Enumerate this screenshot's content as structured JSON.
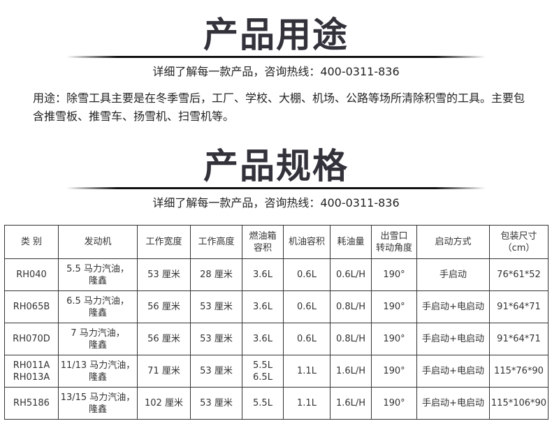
{
  "section1": {
    "title": "产品用途",
    "subtitle": "详细了解每一款产品，咨询热线：400-0311-836"
  },
  "usage": {
    "text": "用途：除雪工具主要是在冬季雪后，工厂、学校、大棚、机场、公路等场所清除积雪的工具。主要包含推雪板、推雪车、扬雪机、扫雪机等。"
  },
  "section2": {
    "title": "产品规格",
    "subtitle": "详细了解每一款产品，咨询热线：400-0311-836"
  },
  "table": {
    "headers": [
      [
        "类 别"
      ],
      [
        "发动机"
      ],
      [
        "工作宽度"
      ],
      [
        "工作高度"
      ],
      [
        "燃油箱",
        "容积"
      ],
      [
        "机油容积"
      ],
      [
        "耗油量"
      ],
      [
        "出雪口",
        "转动角度"
      ],
      [
        "启动方式"
      ],
      [
        "包装尺寸",
        "（cm）"
      ]
    ],
    "rows": [
      [
        [
          "RH040"
        ],
        [
          "5.5 马力汽油，",
          "隆鑫"
        ],
        [
          "53 厘米"
        ],
        [
          "28 厘米"
        ],
        [
          "3.6L"
        ],
        [
          "0.6L"
        ],
        [
          "0.6L/H"
        ],
        [
          "190°"
        ],
        [
          "手启动"
        ],
        [
          "76*61*52"
        ]
      ],
      [
        [
          "RH065B"
        ],
        [
          "6.5 马力汽油，",
          "隆鑫"
        ],
        [
          "56 厘米"
        ],
        [
          "53 厘米"
        ],
        [
          "3.6L"
        ],
        [
          "0.6L"
        ],
        [
          "0.8L/H"
        ],
        [
          "190°"
        ],
        [
          "手启动+电启动"
        ],
        [
          "91*64*71"
        ]
      ],
      [
        [
          "RH070D"
        ],
        [
          "7 马力汽油，",
          "隆鑫"
        ],
        [
          "56 厘米"
        ],
        [
          "53 厘米"
        ],
        [
          "3.6L"
        ],
        [
          "0.6L"
        ],
        [
          "0.8L/H"
        ],
        [
          "190°"
        ],
        [
          "手启动+电启动"
        ],
        [
          "91*64*71"
        ]
      ],
      [
        [
          "RH011A",
          "RH013A"
        ],
        [
          "11/13 马力汽油，",
          "隆鑫"
        ],
        [
          "71 厘米"
        ],
        [
          "53 厘米"
        ],
        [
          "5.5L",
          "6.5L"
        ],
        [
          "1.1L"
        ],
        [
          "1.6L/H"
        ],
        [
          "190°"
        ],
        [
          "手启动+电启动"
        ],
        [
          "115*76*90"
        ]
      ],
      [
        [
          "RH5186"
        ],
        [
          "13/15 马力汽油，",
          "隆鑫"
        ],
        [
          "102 厘米"
        ],
        [
          "53 厘米"
        ],
        [
          "5.5L"
        ],
        [
          "1.1L"
        ],
        [
          "1.6L/H"
        ],
        [
          "190°"
        ],
        [
          "手启动+电启动"
        ],
        [
          "115*106*90"
        ]
      ]
    ]
  }
}
